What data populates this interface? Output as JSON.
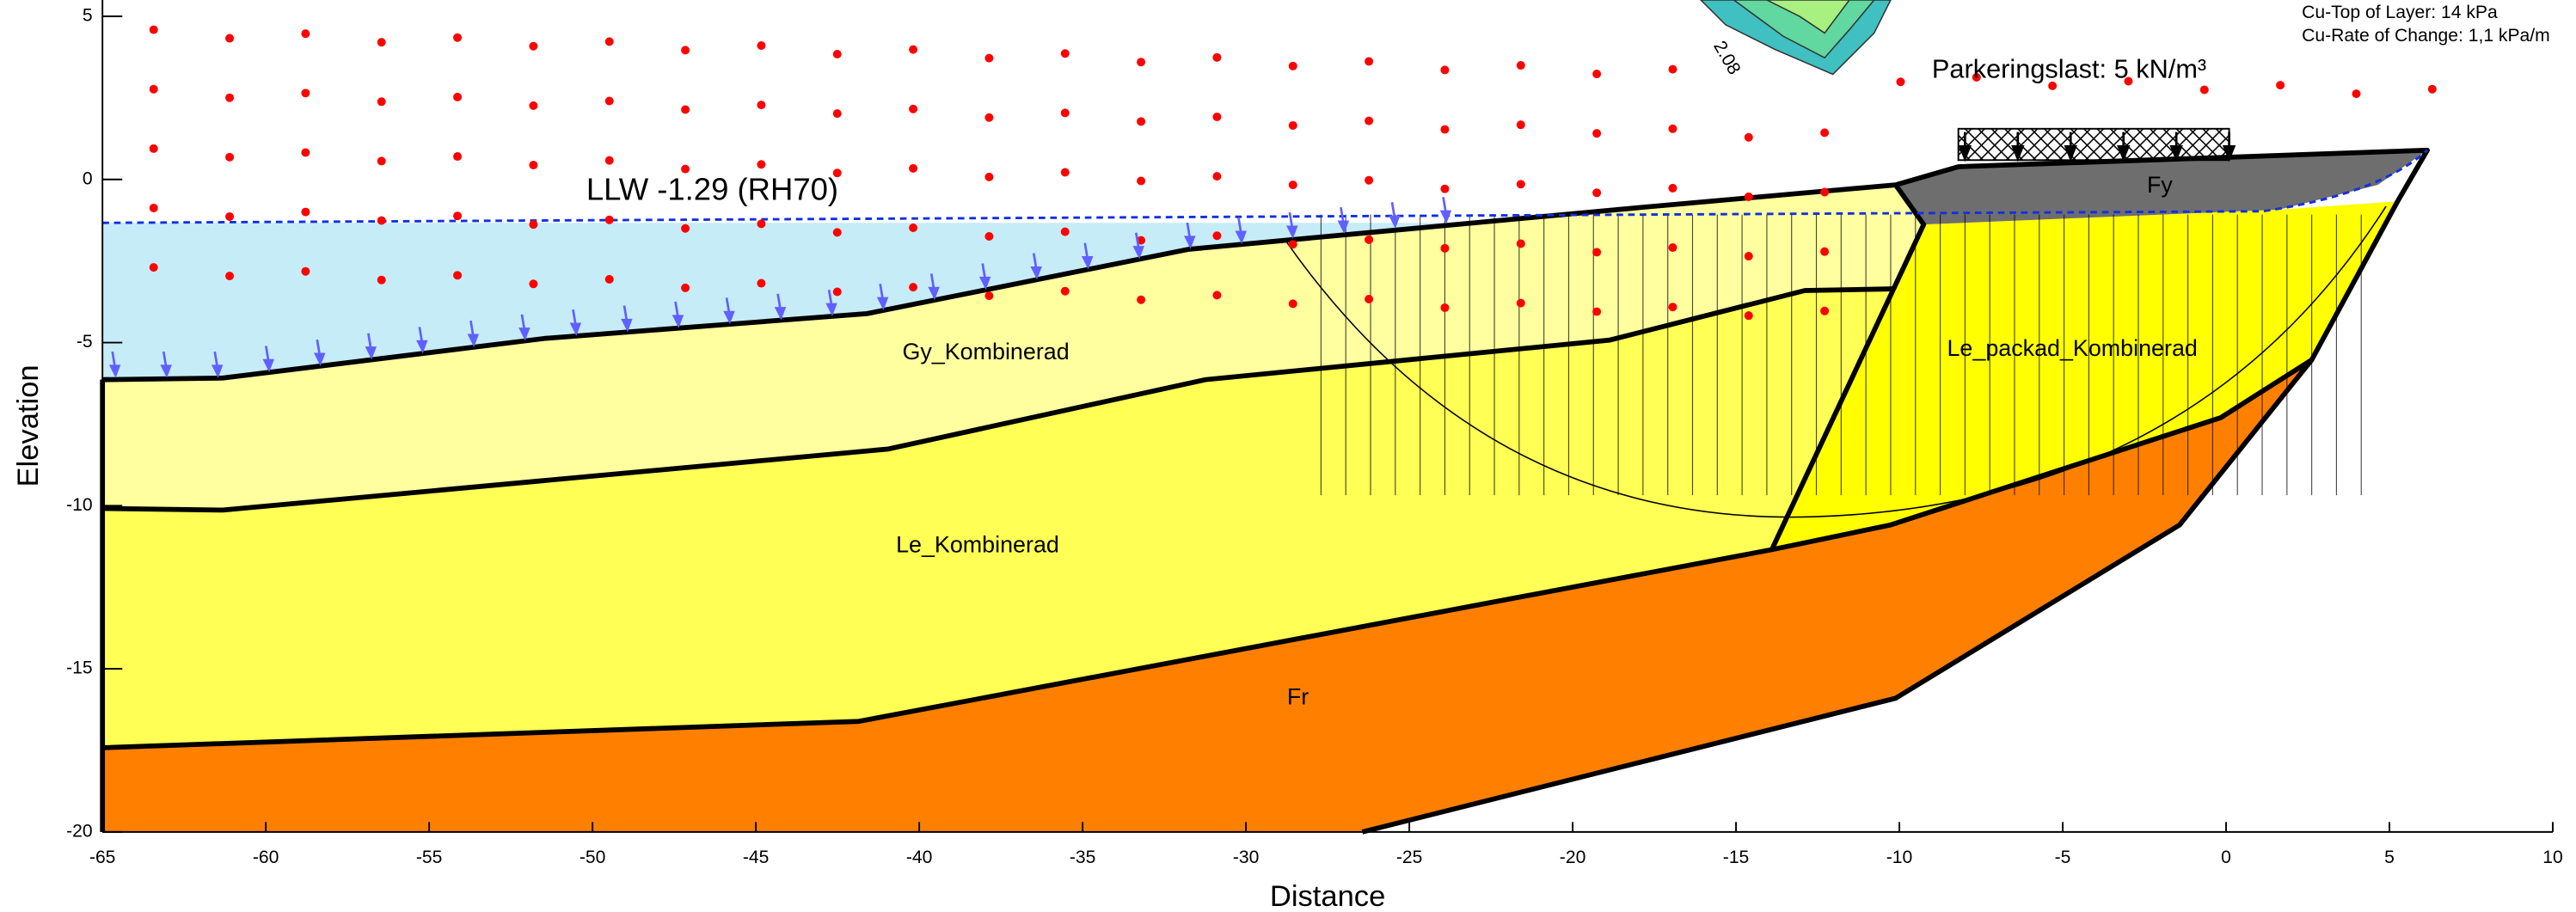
{
  "chart_data": {
    "type": "cross-section",
    "xlabel": "Distance",
    "ylabel": "Elevation",
    "xlim": [
      -65,
      10
    ],
    "ylim": [
      -20,
      5.5
    ],
    "xticks": [
      -65,
      -60,
      -55,
      -50,
      -45,
      -40,
      -35,
      -30,
      -25,
      -20,
      -15,
      -10,
      -5,
      0,
      5,
      10
    ],
    "yticks": [
      5,
      0,
      -5,
      -10,
      -15,
      -20
    ],
    "water_line_label": "LLW -1.29 (RH70)",
    "load_label": "Parkeringslast: 5 kN/m³",
    "contour_label": "2.08",
    "regions": [
      "Gy_Kombinerad",
      "Le_Kombinerad",
      "Fr",
      "Le_packad_Kombinerad",
      "Fy"
    ],
    "notes": [
      "Cu-Top of Layer: 14 kPa",
      "Cu-Rate of Change: 1,1 kPa/m"
    ]
  }
}
